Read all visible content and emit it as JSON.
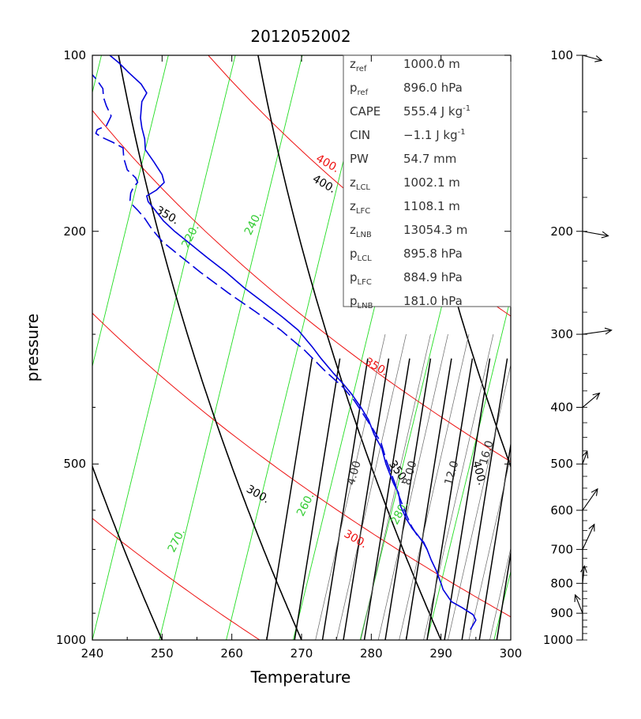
{
  "chart_data": {
    "type": "line",
    "title": "2012052002",
    "xlabel": "Temperature",
    "ylabel": "pressure",
    "xlim": [
      240,
      300
    ],
    "ylim": [
      1000,
      100
    ],
    "y_scale": "log",
    "x_ticks": [
      "240",
      "250",
      "260",
      "270",
      "280",
      "290",
      "300"
    ],
    "y_ticks": [
      {
        "p": 100,
        "label": "100"
      },
      {
        "p": 200,
        "label": "200"
      },
      {
        "p": 500,
        "label": "500"
      },
      {
        "p": 1000,
        "label": "1000"
      }
    ],
    "grid": false,
    "series": [
      {
        "style": "solid",
        "color": "#0000dd",
        "points": [
          [
            294.2,
            960
          ],
          [
            295.0,
            925
          ],
          [
            294.6,
            905
          ],
          [
            293.0,
            880
          ],
          [
            291.5,
            860
          ],
          [
            290.3,
            820
          ],
          [
            290.0,
            800
          ],
          [
            289.3,
            760
          ],
          [
            288.6,
            730
          ],
          [
            288.0,
            700
          ],
          [
            287.4,
            680
          ],
          [
            286.6,
            660
          ],
          [
            285.9,
            645
          ],
          [
            285.0,
            620
          ],
          [
            284.2,
            590
          ],
          [
            283.9,
            560
          ],
          [
            283.2,
            540
          ],
          [
            282.1,
            500
          ],
          [
            281.5,
            470
          ],
          [
            280.4,
            445
          ],
          [
            279.6,
            420
          ],
          [
            278.5,
            400
          ],
          [
            277.2,
            380
          ],
          [
            276.0,
            365
          ],
          [
            274.6,
            350
          ],
          [
            272.8,
            330
          ],
          [
            271.5,
            315
          ],
          [
            269.5,
            295
          ],
          [
            267.2,
            280
          ],
          [
            264.6,
            265
          ],
          [
            261.8,
            250
          ],
          [
            259.2,
            235
          ],
          [
            256.5,
            222
          ],
          [
            254.0,
            210
          ],
          [
            251.8,
            200
          ],
          [
            250.2,
            192
          ],
          [
            249.0,
            184
          ],
          [
            248.0,
            178
          ],
          [
            247.8,
            174
          ],
          [
            249.2,
            170
          ],
          [
            250.3,
            165
          ],
          [
            250.0,
            160
          ],
          [
            248.8,
            152
          ],
          [
            247.6,
            145
          ],
          [
            247.5,
            139
          ],
          [
            247.1,
            133
          ],
          [
            246.9,
            128
          ],
          [
            247.0,
            124
          ],
          [
            247.1,
            120
          ],
          [
            247.8,
            116
          ],
          [
            247.0,
            112
          ],
          [
            245.2,
            107
          ],
          [
            243.8,
            103
          ],
          [
            242.5,
            100
          ]
        ]
      },
      {
        "style": "dashed",
        "color": "#0000dd",
        "points": [
          [
            288.0,
            700
          ],
          [
            287.5,
            680
          ],
          [
            286.5,
            660
          ],
          [
            285.8,
            640
          ],
          [
            285.0,
            610
          ],
          [
            283.8,
            560
          ],
          [
            283.4,
            540
          ],
          [
            282.2,
            495
          ],
          [
            281.4,
            460
          ],
          [
            280.2,
            435
          ],
          [
            278.8,
            410
          ],
          [
            277.6,
            390
          ],
          [
            276.0,
            370
          ],
          [
            273.2,
            345
          ],
          [
            270.5,
            320
          ],
          [
            267.0,
            295
          ],
          [
            263.5,
            275
          ],
          [
            259.5,
            255
          ],
          [
            255.5,
            235
          ],
          [
            252.5,
            220
          ],
          [
            250.0,
            208
          ],
          [
            248.5,
            198
          ],
          [
            247.5,
            190
          ],
          [
            246.5,
            184
          ],
          [
            245.7,
            180
          ],
          [
            245.4,
            177
          ],
          [
            245.5,
            172
          ],
          [
            245.9,
            168
          ],
          [
            246.5,
            165
          ],
          [
            246.2,
            162
          ],
          [
            245.0,
            157
          ],
          [
            244.5,
            150
          ],
          [
            244.4,
            144
          ],
          [
            243.0,
            141
          ],
          [
            241.3,
            138
          ],
          [
            240.5,
            136
          ],
          [
            240.7,
            134
          ],
          [
            242.0,
            132
          ],
          [
            242.7,
            127
          ],
          [
            242.0,
            122
          ],
          [
            241.6,
            118
          ],
          [
            241.5,
            114
          ],
          [
            240.6,
            110
          ],
          [
            240.0,
            108
          ]
        ]
      }
    ],
    "isotherm_labels": [
      {
        "text": "220.",
        "color": "#33cc33"
      },
      {
        "text": "240.",
        "color": "#33cc33"
      },
      {
        "text": "260.",
        "color": "#33cc33"
      },
      {
        "text": "270.",
        "color": "#33cc33"
      },
      {
        "text": "280.",
        "color": "#33cc33"
      }
    ],
    "dry_adiabat_labels": [
      "300.",
      "350.",
      "400."
    ],
    "moist_adiabat_labels": [
      "300.",
      "350.",
      "400."
    ],
    "mixing_ratio_labels": [
      "4.00",
      "8.00",
      "12.0",
      "16.0"
    ],
    "info_box": [
      {
        "var": "z",
        "sub": "ref",
        "value": "1000.0 m"
      },
      {
        "var": "p",
        "sub": "ref",
        "value": "896.0 hPa"
      },
      {
        "var": "CAPE",
        "sub": "",
        "value": "555.4 J kg",
        "sup": "-1"
      },
      {
        "var": "CIN",
        "sub": "",
        "value": "−1.1 J kg",
        "sup": "-1"
      },
      {
        "var": "PW",
        "sub": "",
        "value": "54.7 mm"
      },
      {
        "var": "z",
        "sub": "LCL",
        "value": "1002.1 m"
      },
      {
        "var": "z",
        "sub": "LFC",
        "value": "1108.1 m"
      },
      {
        "var": "z",
        "sub": "LNB",
        "value": "13054.3 m"
      },
      {
        "var": "p",
        "sub": "LCL",
        "value": "895.8 hPa"
      },
      {
        "var": "p",
        "sub": "LFC",
        "value": "884.9 hPa"
      },
      {
        "var": "p",
        "sub": "LNB",
        "value": "181.0 hPa"
      }
    ],
    "wind_axis_labels": [
      "100",
      "200",
      "300",
      "400",
      "500",
      "600",
      "700",
      "800",
      "900",
      "1000"
    ],
    "wind_barbs": [
      {
        "p": 100,
        "dir_deg": 15,
        "len": 25
      },
      {
        "p": 200,
        "dir_deg": 10,
        "len": 33
      },
      {
        "p": 300,
        "dir_deg": -8,
        "len": 37
      },
      {
        "p": 400,
        "dir_deg": -40,
        "len": 28
      },
      {
        "p": 500,
        "dir_deg": -70,
        "len": 17
      },
      {
        "p": 600,
        "dir_deg": -55,
        "len": 33
      },
      {
        "p": 700,
        "dir_deg": -65,
        "len": 35
      },
      {
        "p": 800,
        "dir_deg": -84,
        "len": 22
      },
      {
        "p": 900,
        "dir_deg": -112,
        "len": 25
      }
    ]
  }
}
